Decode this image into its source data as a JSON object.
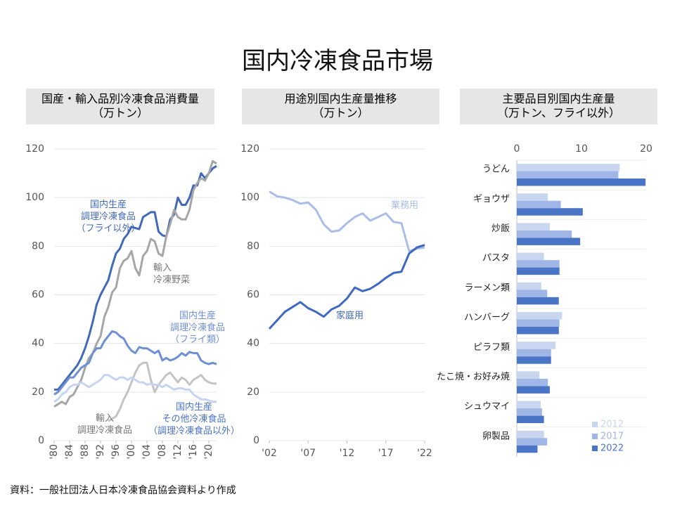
{
  "title": "国内冷凍食品市場",
  "source": "資料：一般社団法人日本冷凍食品協会資料より作成",
  "chart_data": [
    {
      "type": "line",
      "title": "国産・輸入品別冷凍食品消費量\n（万トン）",
      "x": [
        1980,
        1981,
        1982,
        1983,
        1984,
        1985,
        1986,
        1987,
        1988,
        1989,
        1990,
        1991,
        1992,
        1993,
        1994,
        1995,
        1996,
        1997,
        1998,
        1999,
        2000,
        2001,
        2002,
        2003,
        2004,
        2005,
        2006,
        2007,
        2008,
        2009,
        2010,
        2011,
        2012,
        2013,
        2014,
        2015,
        2016,
        2017,
        2018,
        2019,
        2020,
        2021,
        2022
      ],
      "xlim": [
        1980,
        2022
      ],
      "xticks": [
        {
          "value": 1980,
          "label": "'80"
        },
        {
          "value": 1984,
          "label": "'84"
        },
        {
          "value": 1988,
          "label": "'88"
        },
        {
          "value": 1992,
          "label": "'92"
        },
        {
          "value": 1996,
          "label": "'96"
        },
        {
          "value": 2000,
          "label": "'00"
        },
        {
          "value": 2004,
          "label": "'04"
        },
        {
          "value": 2008,
          "label": "'08"
        },
        {
          "value": 2012,
          "label": "'12"
        },
        {
          "value": 2016,
          "label": "'16"
        },
        {
          "value": 2020,
          "label": "'20"
        }
      ],
      "ylim": [
        0,
        120
      ],
      "yticks": [
        0,
        20,
        40,
        60,
        80,
        100,
        120
      ],
      "grid": true,
      "series": [
        {
          "name": "国内生産\n調理冷凍食品\n（フライ以外）",
          "color": "#4169b8",
          "values": [
            21,
            21,
            23,
            25,
            27,
            29,
            31,
            34,
            38,
            43,
            49,
            56,
            60,
            63,
            66,
            72,
            77,
            79,
            83,
            85,
            88,
            87.5,
            87,
            92,
            93,
            94,
            94,
            86,
            84.5,
            84,
            91,
            93,
            100,
            97,
            97,
            100,
            105,
            105,
            110,
            108,
            110,
            112,
            113
          ]
        },
        {
          "name": "輸入\n冷凍野菜",
          "color": "#a6a6a6",
          "values": [
            14,
            15,
            16,
            15,
            18,
            19,
            22,
            25,
            30,
            34,
            36,
            40,
            43,
            51,
            55,
            61,
            63,
            71,
            74,
            75,
            78,
            71,
            68,
            76,
            78,
            83,
            82,
            77,
            76,
            84,
            89,
            95,
            92,
            91,
            91,
            95,
            103,
            106,
            108,
            107,
            110,
            115,
            114
          ]
        },
        {
          "name": "国内生産\n調理冷凍食品\n（フライ類）",
          "color": "#6e8fd2",
          "values": [
            19,
            20,
            22,
            24,
            26,
            26,
            28,
            30,
            31,
            32,
            36,
            38,
            38,
            41,
            43,
            45,
            44.5,
            43,
            42,
            39,
            37,
            36,
            38.5,
            38,
            38,
            37,
            36,
            37,
            33,
            34,
            33,
            33.5,
            34.5,
            36,
            35,
            36.5,
            36,
            36,
            33,
            32,
            31.5,
            32,
            31.5
          ]
        },
        {
          "name": "輸入\n調理冷凍食品",
          "color": "#c4c4c4",
          "values": [
            null,
            null,
            null,
            null,
            null,
            null,
            null,
            null,
            null,
            null,
            null,
            null,
            null,
            null,
            8,
            9,
            10,
            13,
            17,
            20,
            24,
            28,
            31,
            32,
            32,
            25,
            20,
            23,
            25,
            27,
            28,
            26,
            24,
            26,
            25,
            23,
            25,
            26,
            27,
            25,
            24,
            23.5,
            23.5
          ]
        },
        {
          "name": "国内生産\nその他冷凍食品\n（調理冷凍食品以外）",
          "color": "#c7d4ef",
          "values": [
            16,
            17,
            19,
            20,
            22,
            23,
            23,
            24,
            23,
            22,
            23,
            24,
            25,
            27,
            27,
            26,
            25,
            26,
            26,
            25,
            26,
            25,
            24,
            24,
            23,
            23.5,
            23,
            23,
            22,
            23,
            22,
            21,
            21.5,
            21.5,
            21,
            21,
            19,
            18,
            17,
            17,
            16.5,
            16,
            16
          ]
        }
      ]
    },
    {
      "type": "line",
      "title": "用途別国内生産量推移\n（万トン）",
      "x": [
        2002,
        2003,
        2004,
        2005,
        2006,
        2007,
        2008,
        2009,
        2010,
        2011,
        2012,
        2013,
        2014,
        2015,
        2016,
        2017,
        2018,
        2019,
        2020,
        2021,
        2022
      ],
      "xlim": [
        2002,
        2022
      ],
      "xticks": [
        {
          "value": 2002,
          "label": "'02"
        },
        {
          "value": 2007,
          "label": "'07"
        },
        {
          "value": 2012,
          "label": "'12"
        },
        {
          "value": 2017,
          "label": "'17"
        },
        {
          "value": 2022,
          "label": "'22"
        }
      ],
      "ylim": [
        0,
        120
      ],
      "yticks": [
        0,
        20,
        40,
        60,
        80,
        100,
        120
      ],
      "grid": true,
      "series": [
        {
          "name": "業務用",
          "color": "#a9bde6",
          "values": [
            102.5,
            100.5,
            100,
            99,
            97.5,
            98,
            95,
            89,
            86,
            86.5,
            89.5,
            92,
            93.5,
            90.5,
            92,
            93.5,
            90,
            89.5,
            78,
            79,
            79.5
          ]
        },
        {
          "name": "家庭用",
          "color": "#3f68c0",
          "values": [
            46,
            49.5,
            53,
            55,
            57,
            54.5,
            53,
            51,
            54,
            55.5,
            58.5,
            63,
            61.5,
            62.5,
            64.5,
            67,
            69,
            69.5,
            77,
            79.5,
            80.5
          ]
        }
      ]
    },
    {
      "type": "barh",
      "title": "主要品目別国内生産量\n（万トン、フライ以外）",
      "categories": [
        "うどん",
        "ギョウザ",
        "炒飯",
        "パスタ",
        "ラーメン類",
        "ハンバーグ",
        "ピラフ類",
        "たこ焼・お好み焼",
        "シュウマイ",
        "卵製品"
      ],
      "xlim": [
        0,
        20
      ],
      "xticks": [
        0,
        10,
        20
      ],
      "legend": "lower right",
      "series": [
        {
          "name": "2012",
          "color": "#c9d6f0",
          "values": [
            15.9,
            4.8,
            5.1,
            4.2,
            3.8,
            7.0,
            6.0,
            3.5,
            3.7,
            4.2
          ]
        },
        {
          "name": "2017",
          "color": "#9fb6e6",
          "values": [
            15.7,
            6.8,
            8.5,
            6.6,
            4.7,
            6.6,
            5.3,
            4.8,
            3.9,
            4.7
          ]
        },
        {
          "name": "2022",
          "color": "#4a74c6",
          "values": [
            19.9,
            10.2,
            9.8,
            6.6,
            6.5,
            6.5,
            5.3,
            5.1,
            4.2,
            3.2
          ]
        }
      ]
    }
  ]
}
